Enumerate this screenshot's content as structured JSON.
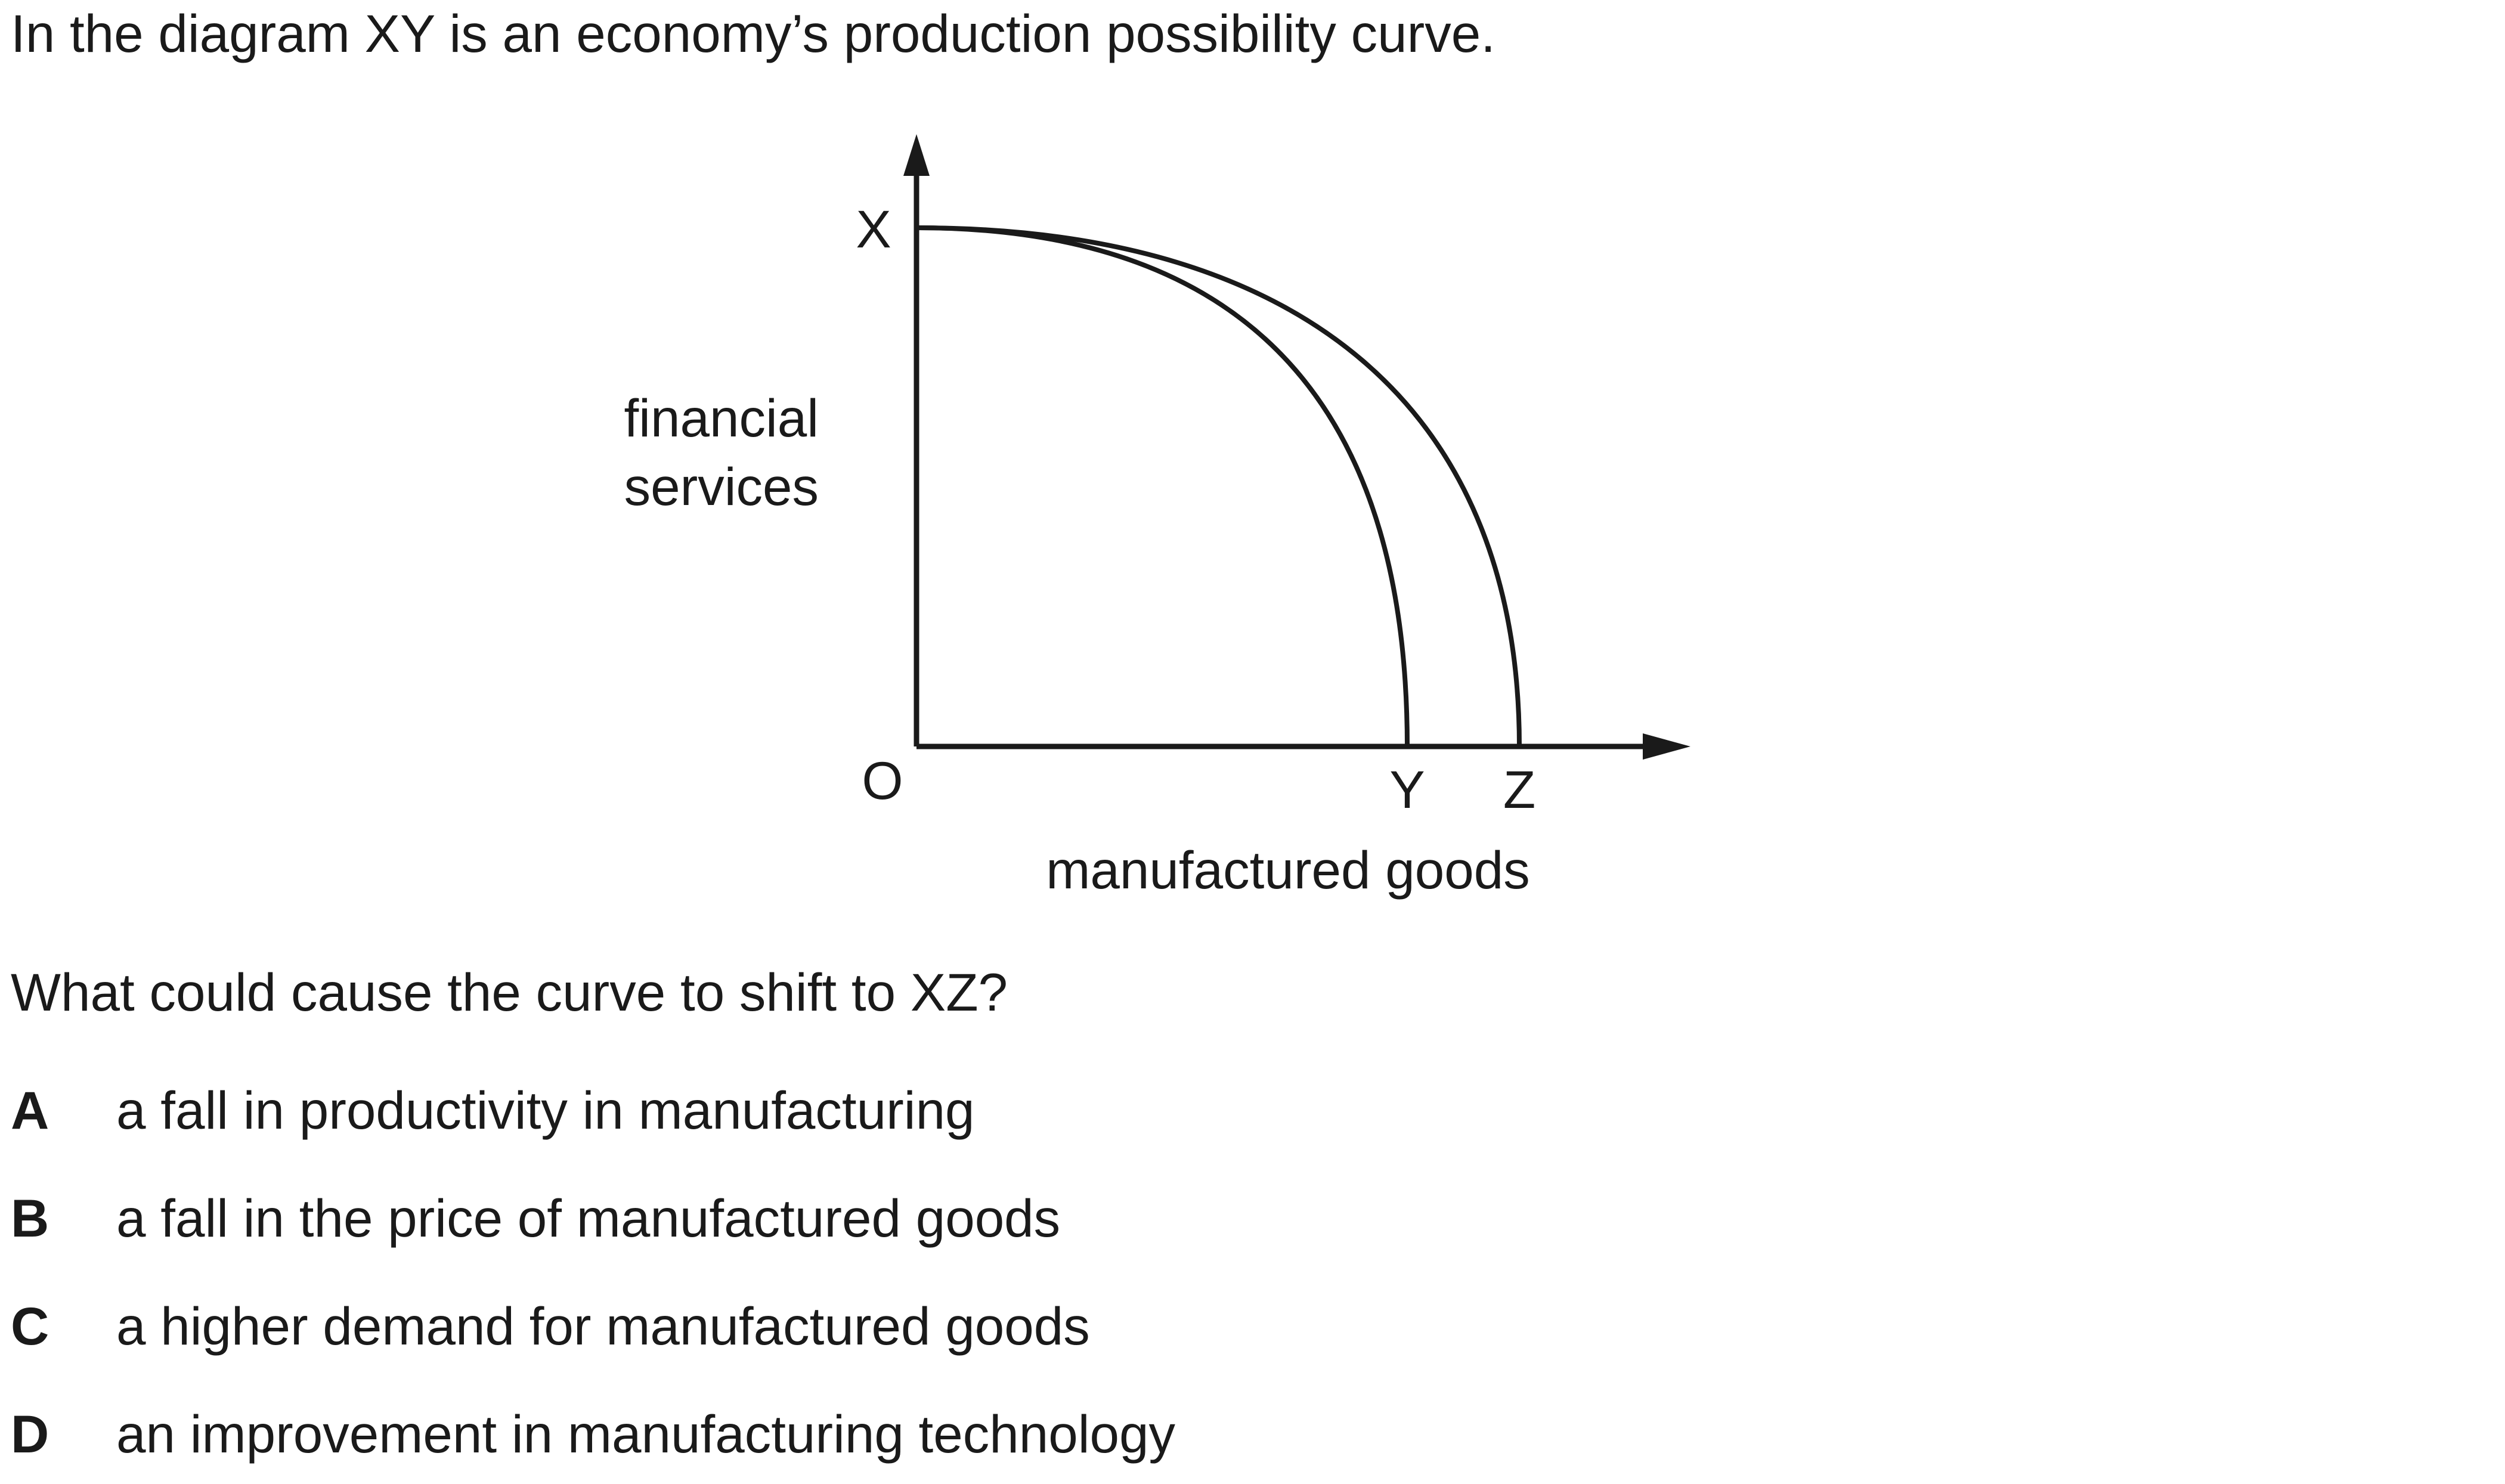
{
  "stem": "In the diagram XY is an economy’s production possibility curve.",
  "diagram": {
    "y_axis_label_line1": "financial",
    "y_axis_label_line2": "services",
    "x_axis_label": "manufactured goods",
    "origin_label": "O",
    "point_x_label": "X",
    "point_y_label": "Y",
    "point_z_label": "Z",
    "curves": [
      "XY",
      "XZ"
    ],
    "line_color": "#1a1a1a"
  },
  "question": "What could cause the curve to shift to XZ?",
  "options": [
    {
      "letter": "A",
      "text": "a fall in productivity in manufacturing"
    },
    {
      "letter": "B",
      "text": "a fall in the price of manufactured goods"
    },
    {
      "letter": "C",
      "text": "a higher demand for manufactured goods"
    },
    {
      "letter": "D",
      "text": "an improvement in manufacturing technology"
    }
  ]
}
